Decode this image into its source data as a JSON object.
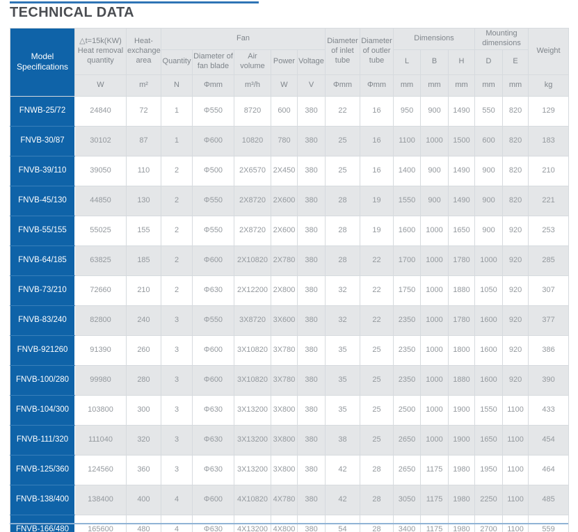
{
  "page": {
    "title": "TECHNICAL DATA"
  },
  "colors": {
    "accent_blue": "#0f63a8",
    "title_rule_blue": "#2e74b5",
    "bottom_rule_blue": "#8fb3d5",
    "header_gray": "#e4e6e8",
    "alt_row_gray": "#e4e6e8"
  },
  "table": {
    "header": {
      "model": "Model\nSpecifications",
      "heat_removal": "△t=15k(KW)\nHeat removal\nquantity",
      "heat_exchange": "Heat-\nexchange\narea",
      "fan_group": "Fan",
      "inlet": "Diameter\nof inlet\ntube",
      "outlet": "Diameter\nof outler\ntube",
      "dimensions_group": "Dimensions",
      "mounting_group": "Mounting\ndimensions",
      "weight": "Weight"
    },
    "subheaders": {
      "quantity": "Quantity",
      "fan_blade": "Diameter of\nfan blade",
      "air_volume": "Air\nvolume",
      "power": "Power",
      "voltage": "Voltage",
      "dim_l": "L",
      "dim_b": "B",
      "dim_h": "H",
      "mount_d": "D",
      "mount_e": "E"
    },
    "units": [
      "W",
      "m²",
      "N",
      "Φmm",
      "m³/h",
      "W",
      "V",
      "Φmm",
      "Φmm",
      "mm",
      "mm",
      "mm",
      "mm",
      "mm",
      "kg"
    ],
    "rows": [
      {
        "model": "FNWB-25/72",
        "cells": [
          "24840",
          "72",
          "1",
          "Φ550",
          "8720",
          "600",
          "380",
          "22",
          "16",
          "950",
          "900",
          "1490",
          "550",
          "820",
          "129"
        ]
      },
      {
        "model": "FNVB-30/87",
        "cells": [
          "30102",
          "87",
          "1",
          "Φ600",
          "10820",
          "780",
          "380",
          "25",
          "16",
          "1100",
          "1000",
          "1500",
          "600",
          "820",
          "183"
        ]
      },
      {
        "model": "FNVB-39/110",
        "cells": [
          "39050",
          "110",
          "2",
          "Φ500",
          "2X6570",
          "2X450",
          "380",
          "25",
          "16",
          "1400",
          "900",
          "1490",
          "900",
          "820",
          "210"
        ]
      },
      {
        "model": "FNVB-45/130",
        "cells": [
          "44850",
          "130",
          "2",
          "Φ550",
          "2X8720",
          "2X600",
          "380",
          "28",
          "19",
          "1550",
          "900",
          "1490",
          "900",
          "820",
          "221"
        ]
      },
      {
        "model": "FNVB-55/155",
        "cells": [
          "55025",
          "155",
          "2",
          "Φ550",
          "2X8720",
          "2X600",
          "380",
          "28",
          "19",
          "1600",
          "1000",
          "1650",
          "900",
          "920",
          "253"
        ]
      },
      {
        "model": "FNVB-64/185",
        "cells": [
          "63825",
          "185",
          "2",
          "Φ600",
          "2X10820",
          "2X780",
          "380",
          "28",
          "22",
          "1700",
          "1000",
          "1780",
          "1000",
          "920",
          "285"
        ]
      },
      {
        "model": "FNVB-73/210",
        "cells": [
          "72660",
          "210",
          "2",
          "Φ630",
          "2X12200",
          "2X800",
          "380",
          "32",
          "22",
          "1750",
          "1000",
          "1880",
          "1050",
          "920",
          "307"
        ]
      },
      {
        "model": "FNVB-83/240",
        "cells": [
          "82800",
          "240",
          "3",
          "Φ550",
          "3X8720",
          "3X600",
          "380",
          "32",
          "22",
          "2350",
          "1000",
          "1780",
          "1600",
          "920",
          "377"
        ]
      },
      {
        "model": "FNVB-921260",
        "cells": [
          "91390",
          "260",
          "3",
          "Φ600",
          "3X10820",
          "3X780",
          "380",
          "35",
          "25",
          "2350",
          "1000",
          "1800",
          "1600",
          "920",
          "386"
        ]
      },
      {
        "model": "FNVB-100/280",
        "cells": [
          "99980",
          "280",
          "3",
          "Φ600",
          "3X10820",
          "3X780",
          "380",
          "35",
          "25",
          "2350",
          "1000",
          "1880",
          "1600",
          "920",
          "390"
        ]
      },
      {
        "model": "FNVB-104/300",
        "cells": [
          "103800",
          "300",
          "3",
          "Φ630",
          "3X13200",
          "3X800",
          "380",
          "35",
          "25",
          "2500",
          "1000",
          "1900",
          "1550",
          "1100",
          "433"
        ]
      },
      {
        "model": "FNVB-111/320",
        "cells": [
          "111040",
          "320",
          "3",
          "Φ630",
          "3X13200",
          "3X800",
          "380",
          "38",
          "25",
          "2650",
          "1000",
          "1900",
          "1650",
          "1100",
          "454"
        ]
      },
      {
        "model": "FNVB-125/360",
        "cells": [
          "124560",
          "360",
          "3",
          "Φ630",
          "3X13200",
          "3X800",
          "380",
          "42",
          "28",
          "2650",
          "1175",
          "1980",
          "1950",
          "1100",
          "464"
        ]
      },
      {
        "model": "FNVB-138/400",
        "cells": [
          "138400",
          "400",
          "4",
          "Φ600",
          "4X10820",
          "4X780",
          "380",
          "42",
          "28",
          "3050",
          "1175",
          "1980",
          "2250",
          "1100",
          "485"
        ]
      },
      {
        "model": "FNVB-166/480",
        "cells": [
          "165600",
          "480",
          "4",
          "Φ630",
          "4X13200",
          "4X800",
          "380",
          "54",
          "28",
          "3400",
          "1175",
          "1980",
          "2700",
          "1100",
          "559"
        ]
      }
    ]
  }
}
